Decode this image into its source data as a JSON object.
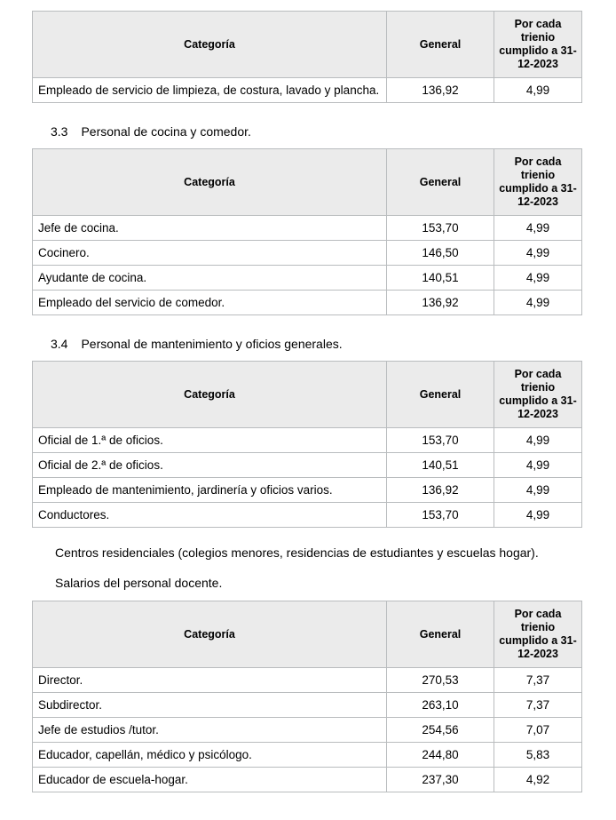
{
  "page": {
    "background": "#ffffff",
    "text_color": "#000000",
    "header_bg": "#ebebeb",
    "border_color": "#b9bcbe"
  },
  "columns": {
    "category": "Categoría",
    "general": "General",
    "trienio": "Por cada trienio cumplido a 31-12-2023"
  },
  "headings": {
    "s33": {
      "num": "3.3",
      "title": "Personal de cocina y comedor."
    },
    "s34": {
      "num": "3.4",
      "title": "Personal de mantenimiento y oficios generales."
    }
  },
  "paragraphs": {
    "centros": "Centros residenciales (colegios menores, residencias de estudiantes y escuelas hogar).",
    "salarios": "Salarios del personal docente."
  },
  "tables": {
    "limpieza": {
      "rows": [
        {
          "categoria": "Empleado de servicio de limpieza, de costura, lavado y plancha.",
          "general": "136,92",
          "trienio": "4,99"
        }
      ]
    },
    "cocina": {
      "rows": [
        {
          "categoria": "Jefe de cocina.",
          "general": "153,70",
          "trienio": "4,99"
        },
        {
          "categoria": "Cocinero.",
          "general": "146,50",
          "trienio": "4,99"
        },
        {
          "categoria": "Ayudante de cocina.",
          "general": "140,51",
          "trienio": "4,99"
        },
        {
          "categoria": "Empleado del servicio de comedor.",
          "general": "136,92",
          "trienio": "4,99"
        }
      ]
    },
    "mantenimiento": {
      "rows": [
        {
          "categoria": "Oficial de 1.ª de oficios.",
          "general": "153,70",
          "trienio": "4,99"
        },
        {
          "categoria": "Oficial de 2.ª de oficios.",
          "general": "140,51",
          "trienio": "4,99"
        },
        {
          "categoria": "Empleado de mantenimiento, jardinería y oficios varios.",
          "general": "136,92",
          "trienio": "4,99"
        },
        {
          "categoria": "Conductores.",
          "general": "153,70",
          "trienio": "4,99"
        }
      ]
    },
    "docente": {
      "rows": [
        {
          "categoria": "Director.",
          "general": "270,53",
          "trienio": "7,37"
        },
        {
          "categoria": "Subdirector.",
          "general": "263,10",
          "trienio": "7,37"
        },
        {
          "categoria": "Jefe de estudios /tutor.",
          "general": "254,56",
          "trienio": "7,07"
        },
        {
          "categoria": "Educador, capellán, médico y psicólogo.",
          "general": "244,80",
          "trienio": "5,83"
        },
        {
          "categoria": "Educador de escuela-hogar.",
          "general": "237,30",
          "trienio": "4,92"
        }
      ]
    }
  }
}
